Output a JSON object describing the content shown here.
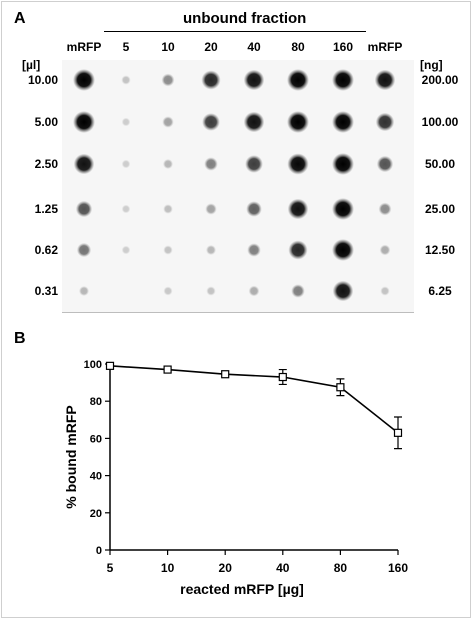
{
  "panel_a": {
    "label": "A",
    "header": "unbound fraction",
    "left_unit": "[µl]",
    "right_unit": "[ng]",
    "columns": [
      "mRFP",
      "5",
      "10",
      "20",
      "40",
      "80",
      "160",
      "mRFP"
    ],
    "volumes": [
      "10.00",
      "5.00",
      "2.50",
      "1.25",
      "0.62",
      "0.31"
    ],
    "amounts": [
      "200.00",
      "100.00",
      "50.00",
      "25.00",
      "12.50",
      "6.25"
    ],
    "spot_intensity": [
      [
        1.0,
        0.1,
        0.35,
        0.8,
        0.9,
        1.0,
        1.0,
        0.9
      ],
      [
        1.0,
        0.05,
        0.25,
        0.7,
        0.9,
        1.0,
        1.0,
        0.75
      ],
      [
        0.9,
        0.05,
        0.15,
        0.4,
        0.7,
        0.95,
        1.0,
        0.6
      ],
      [
        0.6,
        0.05,
        0.12,
        0.25,
        0.55,
        0.9,
        1.0,
        0.35
      ],
      [
        0.45,
        0.05,
        0.1,
        0.15,
        0.4,
        0.8,
        1.0,
        0.2
      ],
      [
        0.15,
        0.0,
        0.08,
        0.1,
        0.2,
        0.4,
        0.9,
        0.1
      ]
    ]
  },
  "chart_data": {
    "type": "line",
    "panel_label": "B",
    "categories": [
      "5",
      "10",
      "20",
      "40",
      "80",
      "160"
    ],
    "series": [
      {
        "values": [
          99,
          97,
          94.5,
          93,
          87.5,
          63
        ],
        "errors": [
          0,
          0,
          0,
          4,
          4.5,
          8.5
        ]
      }
    ],
    "xlabel": "reacted mRFP [µg]",
    "ylabel": "% bound mRFP",
    "ylim": [
      0,
      100
    ],
    "yticks": [
      0,
      20,
      40,
      60,
      80,
      100
    ],
    "grid": false,
    "marker": "open-square",
    "colors": {
      "line": "#000000",
      "marker_fill": "#ffffff"
    }
  }
}
